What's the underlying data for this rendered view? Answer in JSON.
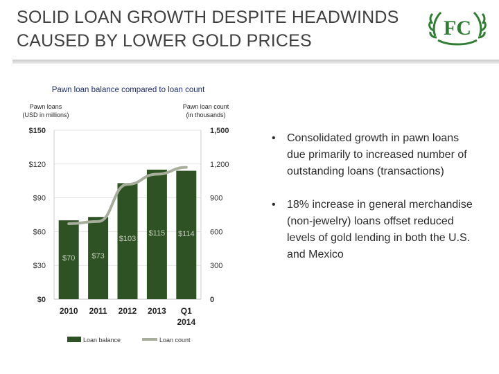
{
  "slide": {
    "title_line1": "SOLID LOAN GROWTH DESPITE HEADWINDS",
    "title_line2": "CAUSED BY LOWER GOLD PRICES"
  },
  "colors": {
    "bar": "#2f5224",
    "line": "#a8ae9c",
    "logo": "#2e7d32",
    "bar_label": "#c7cbbf"
  },
  "chart_data": {
    "type": "bar",
    "title": "Pawn loan balance compared to loan count",
    "categories": [
      "2010",
      "2011",
      "2012",
      "2013",
      "Q1 2014"
    ],
    "category_lines": [
      [
        "2010"
      ],
      [
        "2011"
      ],
      [
        "2012"
      ],
      [
        "2013"
      ],
      [
        "Q1",
        "2014"
      ]
    ],
    "series": [
      {
        "name": "Loan balance",
        "type": "bar",
        "axis": "left",
        "values": [
          70,
          73,
          103,
          115,
          114
        ],
        "labels": [
          "$70",
          "$73",
          "$103",
          "$115",
          "$114"
        ]
      },
      {
        "name": "Loan count",
        "type": "line",
        "axis": "right",
        "values": [
          670,
          690,
          1020,
          1110,
          1170
        ]
      }
    ],
    "left_axis": {
      "label_lines": [
        "Pawn loans",
        "(USD in millions)"
      ],
      "ylim": [
        0,
        150
      ],
      "ticks": [
        0,
        30,
        60,
        90,
        120,
        150
      ],
      "tick_labels": [
        "$0",
        "$30",
        "$60",
        "$90",
        "$120",
        "$150"
      ]
    },
    "right_axis": {
      "label_lines": [
        "Pawn loan count",
        "(in thousands)"
      ],
      "ylim": [
        0,
        1500
      ],
      "ticks": [
        0,
        300,
        600,
        900,
        1200,
        1500
      ],
      "tick_labels": [
        "0",
        "300",
        "600",
        "900",
        "1,200",
        "1,500"
      ]
    },
    "grid": true,
    "legend_position": "bottom"
  },
  "bullets": [
    "Consolidated growth in pawn loans due primarily to increased number of outstanding loans (transactions)",
    "18% increase in general merchandise (non-jewelry) loans offset reduced levels of gold lending in both the U.S. and Mexico"
  ],
  "bullet_symbol": "•",
  "logo": {
    "icon": "fc-leaf-logo-icon",
    "monogram": "FC"
  }
}
